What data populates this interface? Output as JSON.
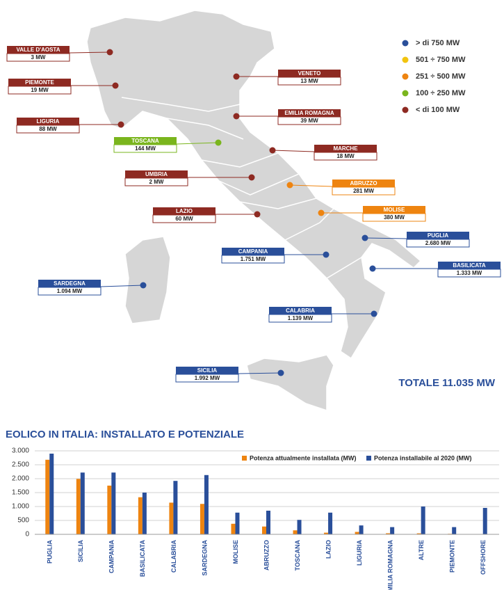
{
  "map": {
    "legend": [
      {
        "label": "> di 750 MW",
        "color": "#2a4f9a"
      },
      {
        "label": "501 ÷ 750 MW",
        "color": "#f2c40f"
      },
      {
        "label": "251 ÷ 500 MW",
        "color": "#ee8410"
      },
      {
        "label": "100 ÷ 250 MW",
        "color": "#7ab51d"
      },
      {
        "label": "< di 100 MW",
        "color": "#8e2a22"
      }
    ],
    "regions": [
      {
        "name": "VALLE D'AOSTA",
        "value": "3 MW",
        "color": "#8e2a22"
      },
      {
        "name": "PIEMONTE",
        "value": "19 MW",
        "color": "#8e2a22"
      },
      {
        "name": "LIGURIA",
        "value": "88 MW",
        "color": "#8e2a22"
      },
      {
        "name": "TOSCANA",
        "value": "144 MW",
        "color": "#7ab51d"
      },
      {
        "name": "UMBRIA",
        "value": "2 MW",
        "color": "#8e2a22"
      },
      {
        "name": "LAZIO",
        "value": "60 MW",
        "color": "#8e2a22"
      },
      {
        "name": "SARDEGNA",
        "value": "1.094 MW",
        "color": "#2a4f9a"
      },
      {
        "name": "SICILIA",
        "value": "1.992 MW",
        "color": "#2a4f9a"
      },
      {
        "name": "CAMPANIA",
        "value": "1.751 MW",
        "color": "#2a4f9a"
      },
      {
        "name": "CALABRIA",
        "value": "1.139 MW",
        "color": "#2a4f9a"
      },
      {
        "name": "BASILICATA",
        "value": "1.333 MW",
        "color": "#2a4f9a"
      },
      {
        "name": "PUGLIA",
        "value": "2.680 MW",
        "color": "#2a4f9a"
      },
      {
        "name": "MOLISE",
        "value": "380 MW",
        "color": "#ee8410"
      },
      {
        "name": "ABRUZZO",
        "value": "281 MW",
        "color": "#ee8410"
      },
      {
        "name": "MARCHE",
        "value": "18 MW",
        "color": "#8e2a22"
      },
      {
        "name": "EMILIA ROMAGNA",
        "value": "39 MW",
        "color": "#8e2a22"
      },
      {
        "name": "VENETO",
        "value": "13 MW",
        "color": "#8e2a22"
      }
    ],
    "total": "TOTALE 11.035 MW"
  },
  "chart_data": {
    "type": "bar",
    "title": "EOLICO IN ITALIA: INSTALLATO E POTENZIALE",
    "categories": [
      "PUGLIA",
      "SICILIA",
      "CAMPANIA",
      "BASILICATA",
      "CALABRIA",
      "SARDEGNA",
      "MOLISE",
      "ABRUZZO",
      "TOSCANA",
      "LAZIO",
      "LIGURIA",
      "EMILIA ROMAGNA",
      "ALTRE",
      "PIEMONTE",
      "OFFSHORE"
    ],
    "series": [
      {
        "name": "Potenza attualmente installata (MW)",
        "color": "#ee8410",
        "values": [
          2680,
          1992,
          1751,
          1333,
          1139,
          1094,
          380,
          281,
          144,
          60,
          88,
          39,
          36,
          19,
          0
        ]
      },
      {
        "name": "Potenza installabile al 2020 (MW)",
        "color": "#2a4f9a",
        "values": [
          2900,
          2220,
          2220,
          1500,
          1920,
          2130,
          780,
          850,
          520,
          780,
          320,
          260,
          1000,
          260,
          950
        ]
      }
    ],
    "ylim": [
      0,
      3000
    ],
    "yticks": [
      0,
      {
        "value": 500,
        "label": "500"
      },
      {
        "value": 1000,
        "label": "1.000"
      },
      {
        "value": 1500,
        "label": "1.500"
      },
      {
        "value": 2000,
        "label": "2.000"
      },
      {
        "value": 2500,
        "label": "2.500"
      },
      {
        "value": 3000,
        "label": "3.000"
      }
    ],
    "grid": true
  }
}
